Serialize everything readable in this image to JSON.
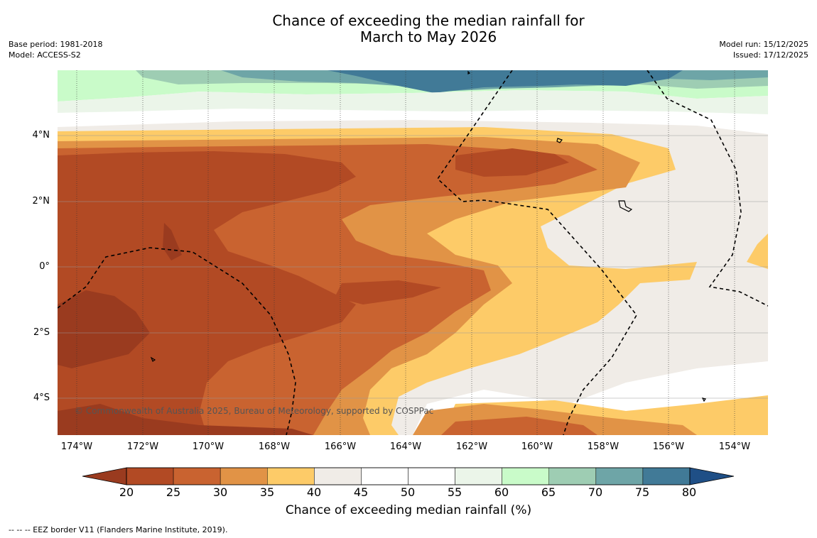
{
  "title": {
    "line1": "Chance of exceeding the median rainfall for",
    "line2": "March to May 2026"
  },
  "meta_left": {
    "base_period": "Base period: 1981-2018",
    "model": "Model: ACCESS-S2"
  },
  "meta_right": {
    "model_run": "Model run: 15/12/2025",
    "issued": "Issued: 17/12/2025"
  },
  "map": {
    "lat_labels": [
      "4°N",
      "2°N",
      "0°",
      "2°S",
      "4°S"
    ],
    "lon_labels": [
      "174°W",
      "172°W",
      "170°W",
      "168°W",
      "166°W",
      "164°W",
      "162°W",
      "160°W",
      "158°W",
      "156°W",
      "154°W"
    ],
    "copyright": "© Commonwealth of Australia 2025, Bureau of Meteorology, supported by COSPPac",
    "colors": {
      "below_20": "#9a3b1f",
      "c20_25": "#b24a24",
      "c25_30": "#c96330",
      "c30_35": "#e19346",
      "c35_40": "#fdcb68",
      "c40_45": "#f0ece7",
      "c45_55": "#ffffff",
      "c55_60": "#ebf5e9",
      "c60_65": "#c9fbc9",
      "c65_70": "#9ecdb3",
      "c70_75": "#6ea5a7",
      "c75_80": "#417a97",
      "above_80": "#1f4f86"
    }
  },
  "colorbar": {
    "ticks": [
      "20",
      "25",
      "30",
      "35",
      "40",
      "45",
      "50",
      "55",
      "60",
      "65",
      "70",
      "75",
      "80"
    ],
    "colors": [
      "#b24a24",
      "#c96330",
      "#e19346",
      "#fdcb68",
      "#f0ece7",
      "#ffffff",
      "#ffffff",
      "#ebf5e9",
      "#c9fbc9",
      "#9ecdb3",
      "#6ea5a7",
      "#417a97"
    ],
    "under_color": "#9a3b1f",
    "over_color": "#1f4f86",
    "label": "Chance of exceeding median rainfall (%)"
  },
  "footer": "--  --  -- EEZ border V11 (Flanders Marine Institute, 2019)."
}
